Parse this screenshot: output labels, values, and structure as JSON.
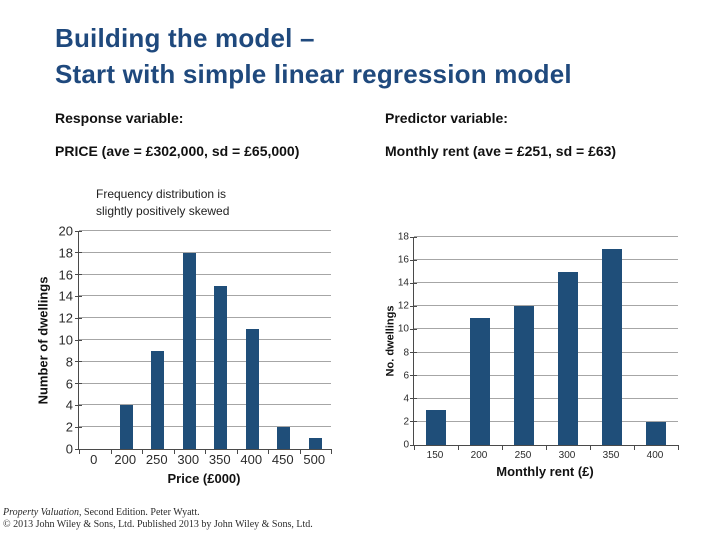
{
  "title": {
    "line1": "Building the model –",
    "line2": "Start with simple linear regression model"
  },
  "variables": {
    "response_label": "Response variable:",
    "response_value": "PRICE (ave = £302,000, sd = £65,000)",
    "predictor_label": "Predictor variable:",
    "predictor_value": "Monthly rent (ave = £251, sd = £63)"
  },
  "annotation": {
    "line1": "Frequency distribution is",
    "line2": "slightly positively skewed"
  },
  "chart_data": [
    {
      "type": "bar",
      "categories": [
        "0",
        "200",
        "250",
        "300",
        "350",
        "400",
        "450",
        "500"
      ],
      "values": [
        0,
        4,
        9,
        18,
        15,
        11,
        2,
        1
      ],
      "xlabel": "Price (£000)",
      "ylabel": "Number of dwellings",
      "ylim": [
        0,
        20
      ],
      "ystep": 2,
      "grid": true,
      "legend": "none",
      "bar_color": "#1F4E79"
    },
    {
      "type": "bar",
      "categories": [
        "150",
        "200",
        "250",
        "300",
        "350",
        "400"
      ],
      "values": [
        3,
        11,
        12,
        15,
        17,
        2
      ],
      "xlabel": "Monthly rent (£)",
      "ylabel": "No. dwellings",
      "ylim": [
        0,
        18
      ],
      "ystep": 2,
      "grid": true,
      "legend": "none",
      "bar_color": "#1F4E79"
    }
  ],
  "footer": {
    "work_title": "Property Valuation",
    "line1_rest": ", Second Edition. Peter Wyatt.",
    "line2": "© 2013 John Wiley & Sons, Ltd. Published 2013 by John Wiley & Sons, Ltd."
  },
  "colors": {
    "title": "#1F497D",
    "bar": "#1F4E79",
    "grid": "#A6A6A6",
    "axis": "#4A4A4A"
  }
}
